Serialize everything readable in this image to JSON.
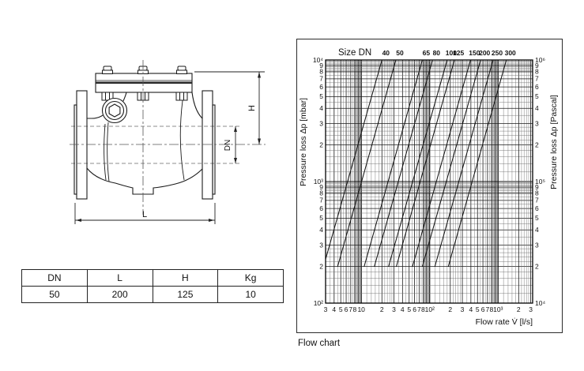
{
  "colors": {
    "ink": "#1a1a1a",
    "grid_minor": "#6e6e6e",
    "grid_major": "#111111",
    "background": "#ffffff"
  },
  "drawing": {
    "type": "swing check valve side elevation",
    "dim_labels": {
      "h": "H",
      "dn": "DN",
      "l": "L"
    }
  },
  "table": {
    "headers": [
      "DN",
      "L",
      "H",
      "Kg"
    ],
    "rows": [
      [
        "50",
        "200",
        "125",
        "10"
      ]
    ]
  },
  "chart": {
    "caption": "Flow chart"
  },
  "chart_data": {
    "type": "line",
    "title": "Size DN",
    "xlabel": "Flow rate V̇ [l/s]",
    "ylabel_left": "Pressure loss Δp [mbar]",
    "ylabel_right": "Pressure loss Δp [Pascal]",
    "scale": "log-log",
    "grid": "on",
    "legend_position": "top",
    "xlim_lps": [
      3,
      3200
    ],
    "ylim_mbar": [
      100,
      10000
    ],
    "ylim_pascal": [
      10000,
      1000000
    ],
    "points_format": "[flow_lps, dp_mbar]",
    "series": [
      {
        "name": "DN 40",
        "dn_label": "40",
        "points": [
          [
            2.8,
            200
          ],
          [
            20,
            10000
          ]
        ]
      },
      {
        "name": "DN 50",
        "dn_label": "50",
        "points": [
          [
            4.5,
            200
          ],
          [
            32,
            10000
          ]
        ]
      },
      {
        "name": "DN 65",
        "dn_label": "65",
        "points": [
          [
            11,
            200
          ],
          [
            78,
            10000
          ]
        ]
      },
      {
        "name": "DN 80",
        "dn_label": "80",
        "points": [
          [
            15.5,
            200
          ],
          [
            110,
            10000
          ]
        ]
      },
      {
        "name": "DN 100",
        "dn_label": "100",
        "points": [
          [
            25,
            200
          ],
          [
            180,
            10000
          ]
        ]
      },
      {
        "name": "DN 125",
        "dn_label": "125",
        "points": [
          [
            32.5,
            200
          ],
          [
            230,
            10000
          ]
        ]
      },
      {
        "name": "DN 150",
        "dn_label": "150",
        "points": [
          [
            56,
            200
          ],
          [
            395,
            10000
          ]
        ]
      },
      {
        "name": "DN 200",
        "dn_label": "200",
        "points": [
          [
            78,
            200
          ],
          [
            555,
            10000
          ]
        ]
      },
      {
        "name": "DN 250",
        "dn_label": "250",
        "points": [
          [
            119,
            200
          ],
          [
            845,
            10000
          ]
        ]
      },
      {
        "name": "DN 300",
        "dn_label": "300",
        "points": [
          [
            187,
            200
          ],
          [
            1320,
            10000
          ]
        ]
      }
    ],
    "x_ticks": [
      {
        "v": 3,
        "l": "3"
      },
      {
        "v": 4,
        "l": "4"
      },
      {
        "v": 5,
        "l": "5"
      },
      {
        "v": 6,
        "l": "6"
      },
      {
        "v": 7,
        "l": "7"
      },
      {
        "v": 8,
        "l": "8"
      },
      {
        "v": 10,
        "l": "10"
      },
      {
        "v": 20,
        "l": "2"
      },
      {
        "v": 30,
        "l": "3"
      },
      {
        "v": 40,
        "l": "4"
      },
      {
        "v": 50,
        "l": "5"
      },
      {
        "v": 60,
        "l": "6"
      },
      {
        "v": 70,
        "l": "7"
      },
      {
        "v": 80,
        "l": "8"
      },
      {
        "v": 100,
        "l": "10²"
      },
      {
        "v": 200,
        "l": "2"
      },
      {
        "v": 300,
        "l": "3"
      },
      {
        "v": 400,
        "l": "4"
      },
      {
        "v": 500,
        "l": "5"
      },
      {
        "v": 600,
        "l": "6"
      },
      {
        "v": 700,
        "l": "7"
      },
      {
        "v": 800,
        "l": "8"
      },
      {
        "v": 1000,
        "l": "10³"
      },
      {
        "v": 2000,
        "l": "2"
      },
      {
        "v": 3000,
        "l": "3"
      }
    ],
    "y_ticks": [
      {
        "v": 10000,
        "left": "10⁴",
        "right": "10⁶"
      },
      {
        "v": 9000,
        "left": "9",
        "right": "9"
      },
      {
        "v": 8000,
        "left": "8",
        "right": "8"
      },
      {
        "v": 7000,
        "left": "7",
        "right": "7"
      },
      {
        "v": 6000,
        "left": "6",
        "right": "6"
      },
      {
        "v": 5000,
        "left": "5",
        "right": "5"
      },
      {
        "v": 4000,
        "left": "4",
        "right": "4"
      },
      {
        "v": 3000,
        "left": "3",
        "right": "3"
      },
      {
        "v": 2000,
        "left": "2",
        "right": "2"
      },
      {
        "v": 1000,
        "left": "10³",
        "right": "10⁵"
      },
      {
        "v": 900,
        "left": "9",
        "right": "9"
      },
      {
        "v": 800,
        "left": "8",
        "right": "8"
      },
      {
        "v": 700,
        "left": "7",
        "right": "7"
      },
      {
        "v": 600,
        "left": "6",
        "right": "6"
      },
      {
        "v": 500,
        "left": "5",
        "right": "5"
      },
      {
        "v": 400,
        "left": "4",
        "right": "4"
      },
      {
        "v": 300,
        "left": "3",
        "right": "3"
      },
      {
        "v": 200,
        "left": "2",
        "right": "2"
      },
      {
        "v": 100,
        "left": "10²",
        "right": "10⁴"
      }
    ]
  }
}
